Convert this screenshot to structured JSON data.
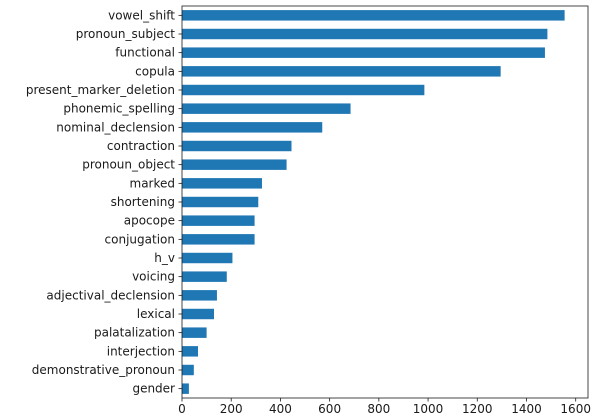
{
  "chart_data": {
    "type": "bar",
    "orientation": "horizontal",
    "categories": [
      "vowel_shift",
      "pronoun_subject",
      "functional",
      "copula",
      "present_marker_deletion",
      "phonemic_spelling",
      "nominal_declension",
      "contraction",
      "pronoun_object",
      "marked",
      "shortening",
      "apocope",
      "conjugation",
      "h_v",
      "voicing",
      "adjectival_declension",
      "lexical",
      "palatalization",
      "interjection",
      "demonstrative_pronoun",
      "gender"
    ],
    "values": [
      1555,
      1485,
      1475,
      1295,
      985,
      685,
      570,
      445,
      425,
      325,
      310,
      295,
      295,
      205,
      182,
      142,
      130,
      100,
      65,
      48,
      28
    ],
    "xlim": [
      0,
      1650
    ],
    "xticks": [
      0,
      200,
      400,
      600,
      800,
      1000,
      1200,
      1400,
      1600
    ],
    "title": "",
    "xlabel": "",
    "ylabel": "",
    "grid": false,
    "bar_color": "#1f77b4"
  }
}
